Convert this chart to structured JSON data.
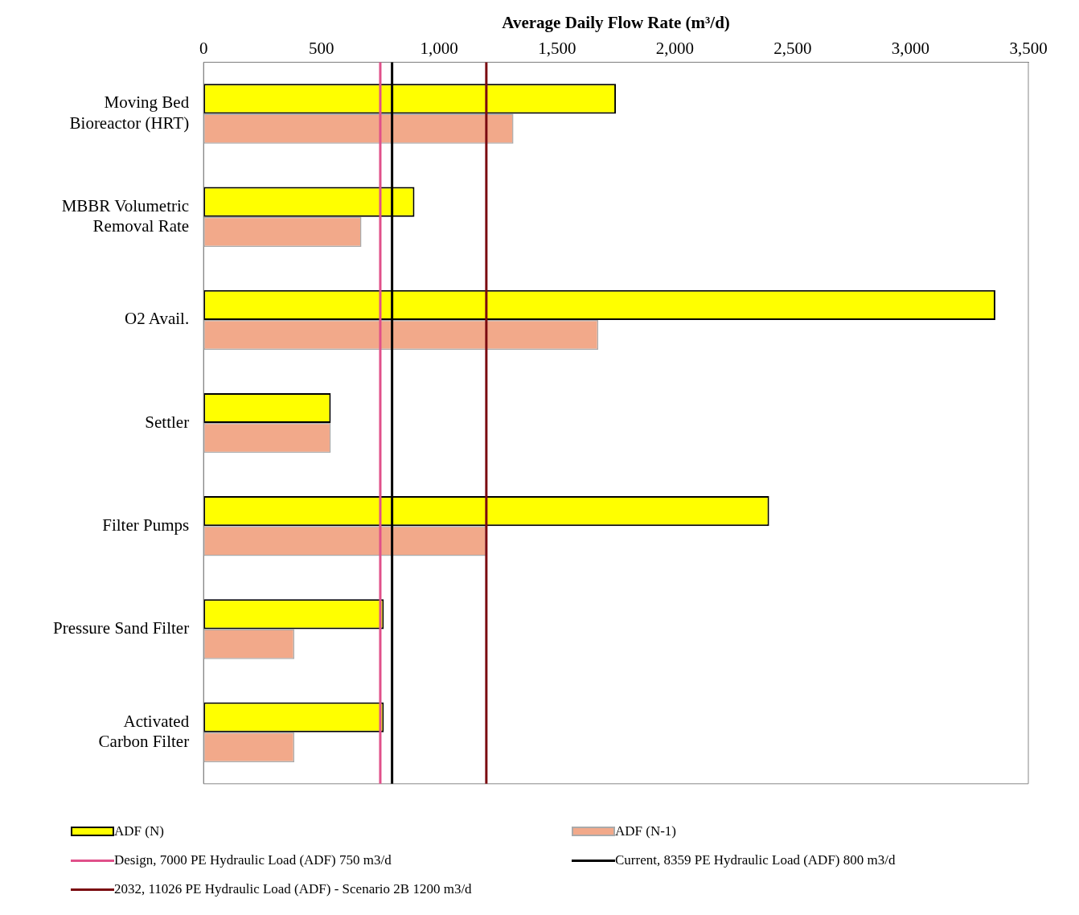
{
  "chart_data": {
    "type": "bar",
    "orientation": "horizontal",
    "xlabel": "Average Daily Flow Rate (m³/d)",
    "categories": [
      "Moving Bed Bioreactor (HRT)",
      "MBBR Volumetric Removal Rate",
      "O2 Avail.",
      "Settler",
      "Filter Pumps",
      "Pressure Sand Filter",
      "Activated Carbon Filter"
    ],
    "series": [
      {
        "name": "ADF (N)",
        "color": "#ffff00",
        "values": [
          1750,
          895,
          3360,
          540,
          2400,
          765,
          765
        ]
      },
      {
        "name": "ADF (N-1)",
        "color": "#f2a98a",
        "values": [
          1315,
          670,
          1675,
          540,
          1200,
          385,
          385
        ]
      }
    ],
    "xlim": [
      0,
      3500
    ],
    "xticks": [
      0,
      500,
      {
        "value": 1000,
        "label": "1,000"
      },
      {
        "value": 1500,
        "label": "1,500"
      },
      {
        "value": 2000,
        "label": "2,000"
      },
      {
        "value": 2500,
        "label": "2,500"
      },
      {
        "value": 3000,
        "label": "3,000"
      },
      {
        "value": 3500,
        "label": "3,500"
      }
    ],
    "ref_lines": [
      {
        "axis": "x",
        "value": 750,
        "label": "Design, 7000 PE Hydraulic Load (ADF) 750 m3/d",
        "color": "#e0508a"
      },
      {
        "axis": "x",
        "value": 800,
        "label": "Current, 8359 PE Hydraulic Load (ADF) 800 m3/d",
        "color": "#000000"
      },
      {
        "axis": "x",
        "value": 1200,
        "label": "2032, 11026 PE Hydraulic Load (ADF) - Scenario 2B 1200 m3/d",
        "color": "#7a0a10"
      }
    ],
    "grid": false,
    "legend": "bottom"
  }
}
